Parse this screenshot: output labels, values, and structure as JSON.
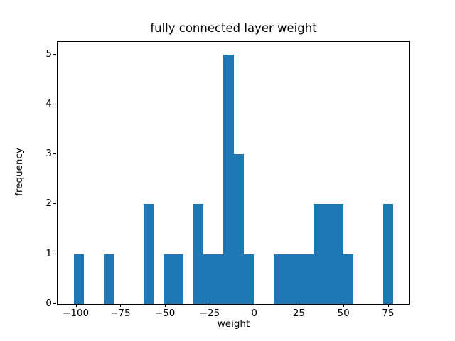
{
  "figure": {
    "background": "#ffffff"
  },
  "chart_data": {
    "type": "bar",
    "subtype": "histogram",
    "title": "fully connected layer weight",
    "xlabel": "weight",
    "ylabel": "frequency",
    "bar_color": "#1f77b4",
    "grid": false,
    "legend": "none",
    "xlim": [
      -110.6,
      86.6
    ],
    "ylim": [
      0,
      5.25
    ],
    "bin_edges": [
      -101.6,
      -96.0,
      -90.4,
      -84.8,
      -79.2,
      -73.6,
      -68.0,
      -62.4,
      -56.8,
      -51.2,
      -45.6,
      -40.0,
      -34.4,
      -28.8,
      -23.2,
      -17.6,
      -12.0,
      -6.4,
      -0.8,
      4.8,
      10.4,
      16.0,
      21.6,
      27.2,
      32.8,
      38.4,
      44.0,
      49.6,
      55.2,
      60.8,
      66.4,
      72.0,
      77.6
    ],
    "counts": [
      1,
      0,
      0,
      1,
      0,
      0,
      0,
      2,
      0,
      1,
      1,
      0,
      2,
      1,
      1,
      5,
      3,
      1,
      0,
      0,
      1,
      1,
      1,
      1,
      2,
      2,
      2,
      1,
      0,
      0,
      0,
      2
    ],
    "xticks": {
      "values": [
        -100,
        -75,
        -50,
        -25,
        0,
        25,
        50,
        75
      ],
      "labels": [
        "−100",
        "−75",
        "−50",
        "−25",
        "0",
        "25",
        "50",
        "75"
      ]
    },
    "yticks": {
      "values": [
        0,
        1,
        2,
        3,
        4,
        5
      ],
      "labels": [
        "0",
        "1",
        "2",
        "3",
        "4",
        "5"
      ]
    }
  }
}
